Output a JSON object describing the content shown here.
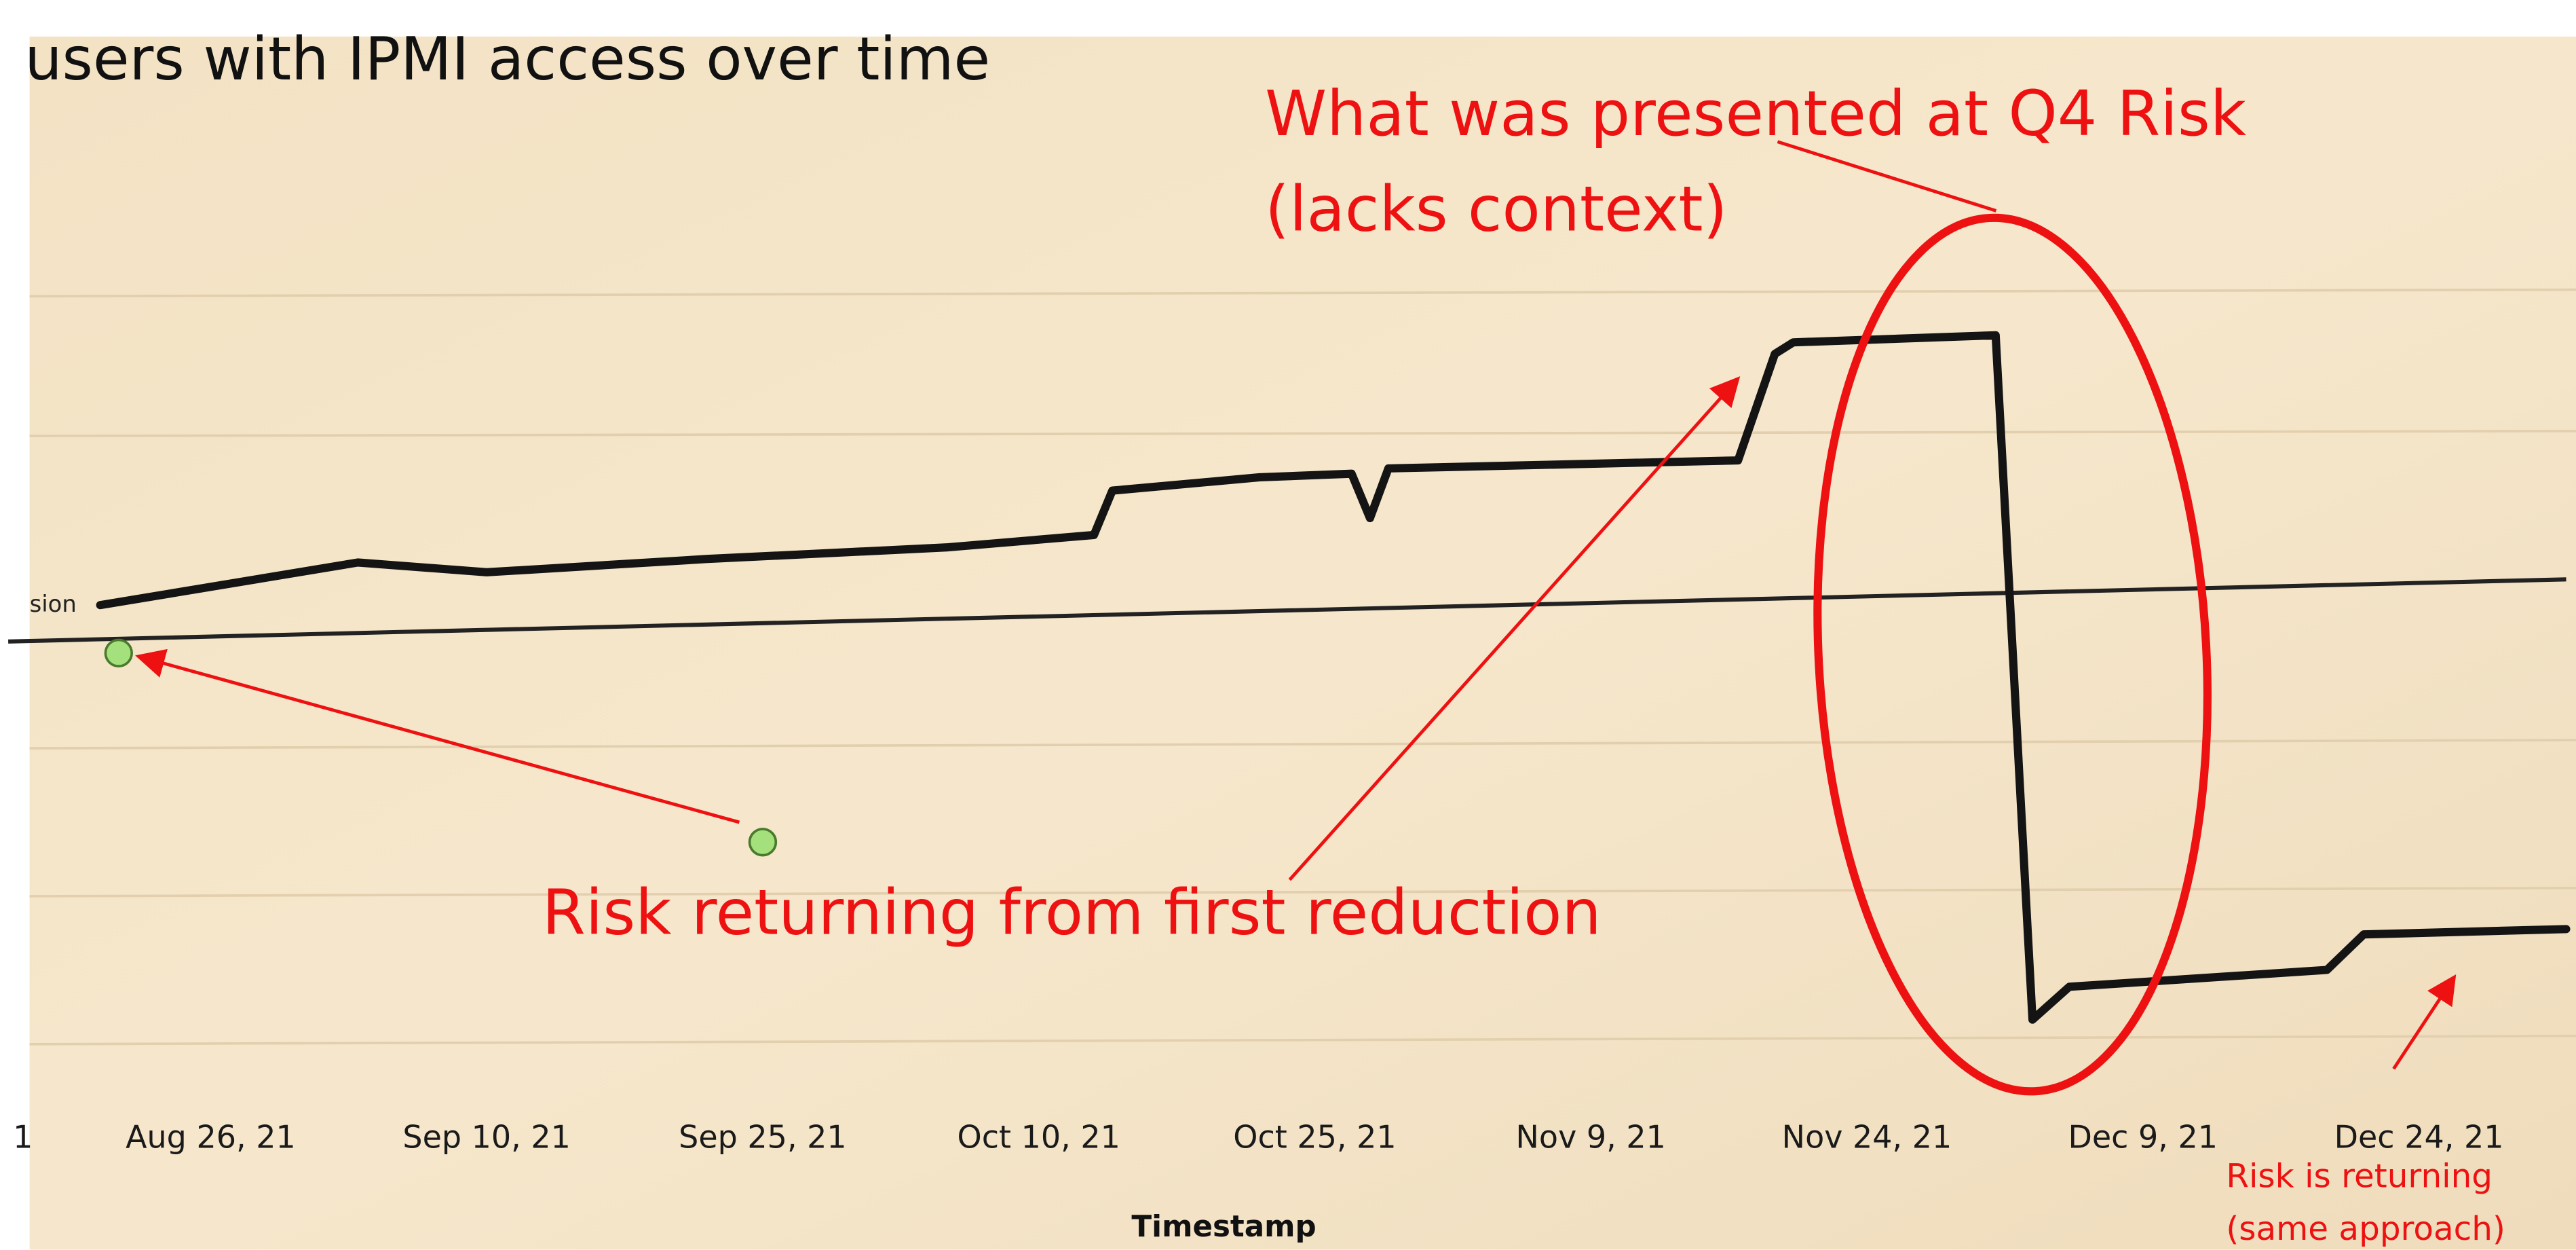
{
  "chart_data": {
    "type": "line",
    "title": "users with IPMI access over time",
    "x_label": "Timestamp",
    "xlim": [
      "2021-08-15",
      "2022-01-01"
    ],
    "ylim": [
      0,
      100
    ],
    "xticks": [
      {
        "value": "2021-08-11",
        "label": "1"
      },
      {
        "value": "2021-08-26",
        "label": "Aug 26, 21"
      },
      {
        "value": "2021-09-10",
        "label": "Sep 10, 21"
      },
      {
        "value": "2021-09-25",
        "label": "Sep 25, 21"
      },
      {
        "value": "2021-10-10",
        "label": "Oct 10, 21"
      },
      {
        "value": "2021-10-25",
        "label": "Oct 25, 21"
      },
      {
        "value": "2021-11-09",
        "label": "Nov 9, 21"
      },
      {
        "value": "2021-11-24",
        "label": "Nov 24, 21"
      },
      {
        "value": "2021-12-09",
        "label": "Dec 9, 21"
      },
      {
        "value": "2021-12-24",
        "label": "Dec 24, 21"
      }
    ],
    "x": [
      "2021-08-20",
      "2021-09-03",
      "2021-09-10",
      "2021-09-22",
      "2021-10-05",
      "2021-10-13",
      "2021-10-14",
      "2021-10-22",
      "2021-10-27",
      "2021-10-28",
      "2021-10-29",
      "2021-11-17",
      "2021-11-19",
      "2021-11-20",
      "2021-12-01",
      "2021-12-03",
      "2021-12-05",
      "2021-12-19",
      "2021-12-21",
      "2022-01-01"
    ],
    "series": [
      {
        "color": "#141414",
        "values": [
          61.5,
          66.3,
          65.2,
          66.7,
          68,
          69.4,
          74.4,
          75.9,
          76.3,
          71.3,
          76.9,
          77.8,
          89.8,
          91.1,
          91.9,
          14.8,
          18.5,
          20.4,
          24.4,
          25
        ]
      }
    ],
    "reference_line": {
      "label": "sion",
      "color": "#222222",
      "x": [
        "2021-08-15",
        "2022-01-01"
      ],
      "values": [
        57.4,
        64.4
      ]
    },
    "markers": {
      "color": "#a4e07c",
      "x": [
        "2021-08-21",
        "2021-09-25"
      ],
      "values": [
        56.1,
        34.8
      ]
    },
    "annotations": {
      "presented": "What was presented at Q4 Risk",
      "presented_note": "(lacks context)",
      "first_reduction": "Risk returning from first reduction",
      "returning": "Risk is returning",
      "returning_note": "(same approach)"
    }
  }
}
